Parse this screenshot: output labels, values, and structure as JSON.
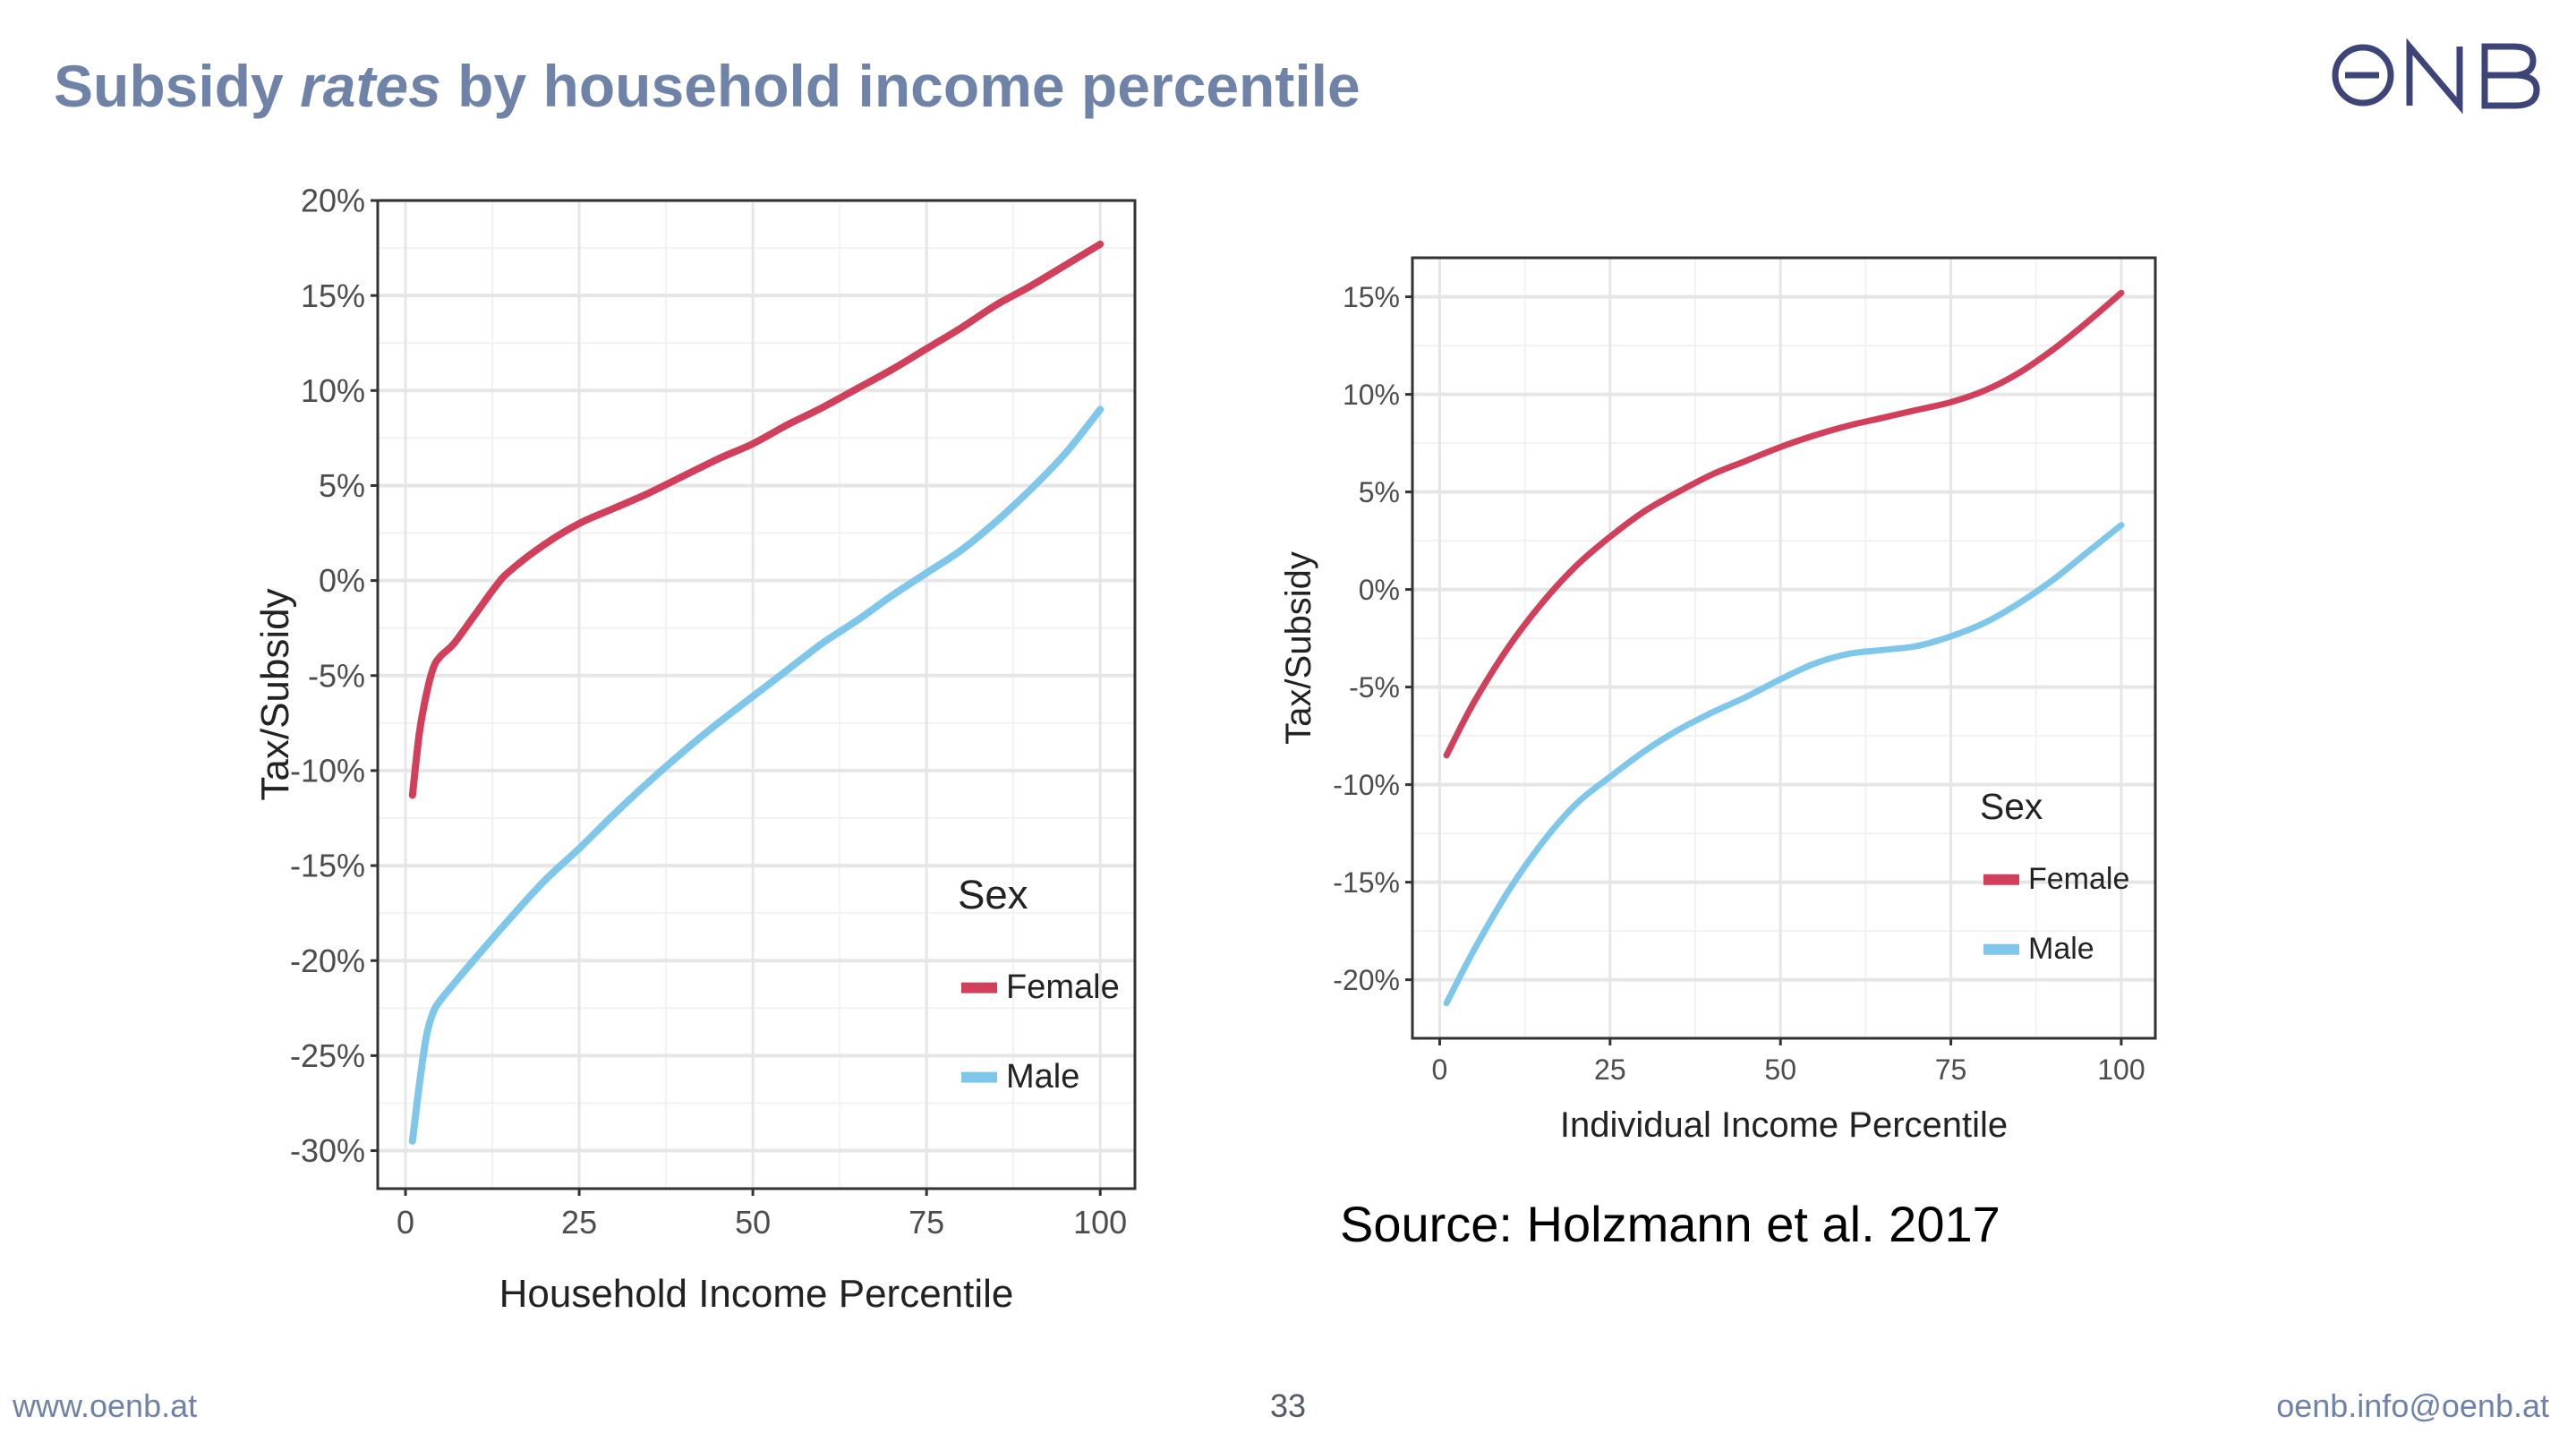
{
  "slide": {
    "title_pre": "Subsidy ",
    "title_em": "rates",
    "title_post": " by household income percentile",
    "logo_text": "ONB",
    "source": "Source: Holzmann et al. 2017",
    "footer_left": "www.oenb.at",
    "page_number": "33",
    "footer_right": "oenb.info@oenb.at"
  },
  "colors": {
    "female": "#d13f5b",
    "male": "#7fc7ea",
    "title": "#6f82a8",
    "logo": "#3d4478"
  },
  "chart_data": [
    {
      "type": "line",
      "xlabel": "Household Income Percentile",
      "ylabel": "Tax/Subsidy",
      "xlim": [
        -4,
        105
      ],
      "ylim": [
        -32,
        20
      ],
      "xticks": [
        0,
        25,
        50,
        75,
        100
      ],
      "xtick_labels": [
        "0",
        "25",
        "50",
        "75",
        "100"
      ],
      "yticks": [
        -30,
        -25,
        -20,
        -15,
        -10,
        -5,
        0,
        5,
        10,
        15,
        20
      ],
      "ytick_labels": [
        "-30%",
        "-25%",
        "-20%",
        "-15%",
        "-10%",
        "-5%",
        "0%",
        "5%",
        "10%",
        "15%",
        "20%"
      ],
      "grid": true,
      "legend": {
        "title": "Sex",
        "position": "bottom-right"
      },
      "series": [
        {
          "name": "Female",
          "x": [
            1,
            2,
            3,
            4,
            5,
            7,
            10,
            13,
            15,
            20,
            25,
            30,
            35,
            40,
            45,
            50,
            55,
            60,
            65,
            70,
            75,
            80,
            85,
            90,
            95,
            100
          ],
          "y": [
            -11.3,
            -8.0,
            -6.0,
            -4.6,
            -4.0,
            -3.3,
            -1.8,
            -0.3,
            0.5,
            1.9,
            3.0,
            3.8,
            4.6,
            5.5,
            6.4,
            7.2,
            8.2,
            9.1,
            10.1,
            11.1,
            12.2,
            13.3,
            14.5,
            15.5,
            16.6,
            17.7
          ]
        },
        {
          "name": "Male",
          "x": [
            1,
            2,
            3,
            4,
            5,
            7,
            10,
            15,
            20,
            25,
            30,
            35,
            40,
            45,
            50,
            55,
            60,
            65,
            70,
            75,
            80,
            85,
            90,
            95,
            100
          ],
          "y": [
            -29.5,
            -26.5,
            -24.0,
            -22.7,
            -22.1,
            -21.2,
            -19.9,
            -17.8,
            -15.8,
            -14.1,
            -12.3,
            -10.6,
            -9.0,
            -7.5,
            -6.1,
            -4.7,
            -3.3,
            -2.1,
            -0.8,
            0.4,
            1.6,
            3.1,
            4.8,
            6.7,
            9.0
          ]
        }
      ]
    },
    {
      "type": "line",
      "xlabel": "Individual Income Percentile",
      "ylabel": "Tax/Subsidy",
      "xlim": [
        -4,
        105
      ],
      "ylim": [
        -23,
        17
      ],
      "xticks": [
        0,
        25,
        50,
        75,
        100
      ],
      "xtick_labels": [
        "0",
        "25",
        "50",
        "75",
        "100"
      ],
      "yticks": [
        -20,
        -15,
        -10,
        -5,
        0,
        5,
        10,
        15
      ],
      "ytick_labels": [
        "-20%",
        "-15%",
        "-10%",
        "-5%",
        "0%",
        "5%",
        "10%",
        "15%"
      ],
      "grid": true,
      "legend": {
        "title": "Sex",
        "position": "right"
      },
      "series": [
        {
          "name": "Female",
          "x": [
            1,
            5,
            10,
            15,
            20,
            25,
            30,
            35,
            40,
            45,
            50,
            55,
            60,
            65,
            70,
            75,
            80,
            85,
            90,
            95,
            100
          ],
          "y": [
            -8.5,
            -5.8,
            -3.0,
            -0.7,
            1.2,
            2.7,
            4.0,
            5.0,
            5.9,
            6.6,
            7.3,
            7.9,
            8.4,
            8.8,
            9.2,
            9.6,
            10.2,
            11.1,
            12.3,
            13.7,
            15.2
          ]
        },
        {
          "name": "Male",
          "x": [
            1,
            5,
            10,
            15,
            20,
            25,
            30,
            35,
            40,
            45,
            50,
            55,
            60,
            65,
            70,
            75,
            80,
            85,
            90,
            95,
            100
          ],
          "y": [
            -21.2,
            -18.5,
            -15.5,
            -13.0,
            -11.0,
            -9.6,
            -8.3,
            -7.2,
            -6.3,
            -5.5,
            -4.6,
            -3.8,
            -3.3,
            -3.1,
            -2.9,
            -2.4,
            -1.7,
            -0.7,
            0.5,
            1.9,
            3.3
          ]
        }
      ]
    }
  ]
}
